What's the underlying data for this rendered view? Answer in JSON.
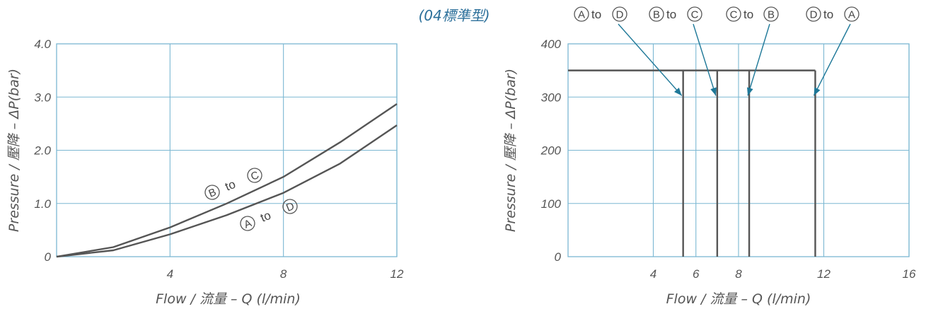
{
  "header": {
    "model_label": "(04標準型)"
  },
  "colors": {
    "grid": "#7bb7d2",
    "curve": "#555555",
    "arrow": "#1e7898",
    "text": "#555555",
    "header": "#2b6f9a"
  },
  "chart_data": [
    {
      "type": "line",
      "xlabel": "Flow / 流量 – Q (l/min)",
      "ylabel": "Pressure / 壓降 – ΔP(bar)",
      "xlim": [
        0,
        12
      ],
      "ylim": [
        0,
        4.0
      ],
      "x_ticks": [
        "4",
        "8",
        "12"
      ],
      "y_ticks": [
        "0",
        "1.0",
        "2.0",
        "3.0",
        "4.0"
      ],
      "grid": true,
      "series": [
        {
          "name": "B to C",
          "x": [
            0,
            2,
            4,
            6,
            8,
            10,
            12
          ],
          "y": [
            0,
            0.18,
            0.55,
            1.0,
            1.5,
            2.15,
            2.87
          ]
        },
        {
          "name": "A to D",
          "x": [
            0,
            2,
            4,
            6,
            8,
            10,
            12
          ],
          "y": [
            0,
            0.12,
            0.42,
            0.78,
            1.2,
            1.75,
            2.47
          ]
        }
      ],
      "annotations": [
        {
          "from": "B",
          "to": "C",
          "joiner": "to"
        },
        {
          "from": "A",
          "to": "D",
          "joiner": "to"
        }
      ]
    },
    {
      "type": "line",
      "xlabel": "Flow / 流量 – Q (l/min)",
      "ylabel": "Pressure / 壓降 – ΔP(bar)",
      "xlim": [
        0,
        16
      ],
      "ylim": [
        0,
        400
      ],
      "x_ticks": [
        "4",
        "6",
        "8",
        "12",
        "16"
      ],
      "y_ticks": [
        "0",
        "100",
        "200",
        "300",
        "400"
      ],
      "grid": true,
      "max_pressure": 350,
      "series": [
        {
          "name": "A to D",
          "max_flow": 5.4
        },
        {
          "name": "B to C",
          "max_flow": 7.0
        },
        {
          "name": "C to B",
          "max_flow": 8.5
        },
        {
          "name": "D to A",
          "max_flow": 11.6
        }
      ],
      "legend": [
        {
          "from": "A",
          "to": "D",
          "joiner": "to"
        },
        {
          "from": "B",
          "to": "C",
          "joiner": "to"
        },
        {
          "from": "C",
          "to": "B",
          "joiner": "to"
        },
        {
          "from": "D",
          "to": "A",
          "joiner": "to"
        }
      ]
    }
  ]
}
